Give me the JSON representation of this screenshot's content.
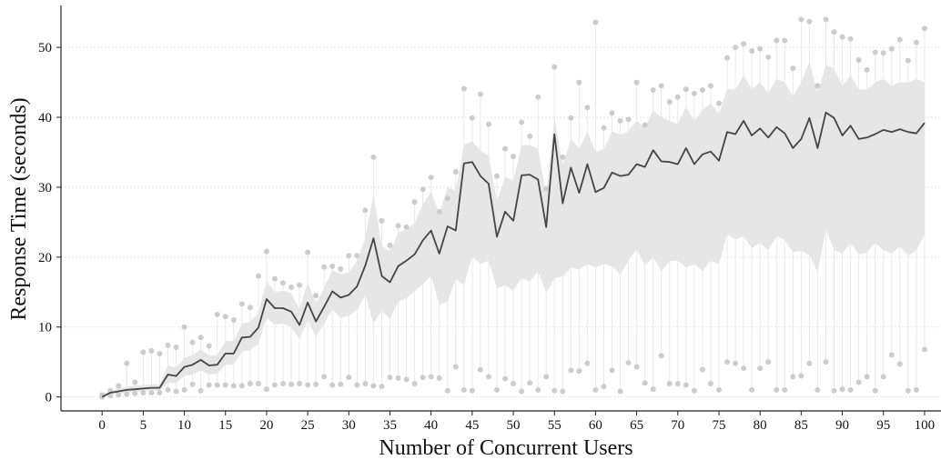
{
  "chart_data": {
    "type": "line",
    "title": "",
    "xlabel": "Number of Concurrent Users",
    "ylabel": "Response Time (seconds)",
    "xlim": [
      -5,
      102
    ],
    "ylim": [
      -2,
      56
    ],
    "xticks": [
      0,
      5,
      10,
      15,
      20,
      25,
      30,
      35,
      40,
      45,
      50,
      55,
      60,
      65,
      70,
      75,
      80,
      85,
      90,
      95,
      100
    ],
    "yticks": [
      0,
      10,
      20,
      30,
      40,
      50
    ],
    "grid": "horizontal-dotted",
    "colors": {
      "line": "#444444",
      "band": "#e6e6e6",
      "points": "#cccccc",
      "whiskers": "#e8e8e8",
      "grid": "#dddddd",
      "axis": "#222222"
    },
    "x": [
      0,
      1,
      2,
      3,
      4,
      5,
      6,
      7,
      8,
      9,
      10,
      11,
      12,
      13,
      14,
      15,
      16,
      17,
      18,
      19,
      20,
      21,
      22,
      23,
      24,
      25,
      26,
      27,
      28,
      29,
      30,
      31,
      32,
      33,
      34,
      35,
      36,
      37,
      38,
      39,
      40,
      41,
      42,
      43,
      44,
      45,
      46,
      47,
      48,
      49,
      50,
      51,
      52,
      53,
      54,
      55,
      56,
      57,
      58,
      59,
      60,
      61,
      62,
      63,
      64,
      65,
      66,
      67,
      68,
      69,
      70,
      71,
      72,
      73,
      74,
      75,
      76,
      77,
      78,
      79,
      80,
      81,
      82,
      83,
      84,
      85,
      86,
      87,
      88,
      89,
      90,
      91,
      92,
      93,
      94,
      95,
      96,
      97,
      98,
      99,
      100
    ],
    "series": [
      {
        "role": "mean",
        "values": [
          0,
          0.6,
          0.8,
          1.0,
          1.1,
          1.2,
          1.3,
          1.3,
          3.2,
          3.0,
          4.3,
          4.6,
          5.3,
          4.5,
          4.6,
          6.2,
          6.2,
          8.5,
          8.6,
          9.9,
          14.0,
          12.7,
          12.7,
          12.2,
          10.3,
          13.5,
          10.8,
          12.9,
          15.1,
          14.2,
          14.6,
          15.8,
          18.8,
          22.7,
          17.3,
          16.4,
          18.7,
          19.5,
          20.4,
          22.4,
          23.8,
          20.5,
          24.4,
          23.8,
          33.4,
          33.6,
          31.6,
          30.5,
          22.9,
          26.5,
          25.2,
          31.7,
          31.8,
          31.1,
          24.3,
          37.6,
          27.7,
          32.8,
          29.2,
          33.3,
          29.3,
          29.9,
          32.1,
          31.6,
          31.8,
          33.3,
          32.9,
          35.3,
          33.7,
          33.6,
          33.3,
          35.6,
          33.3,
          34.7,
          35.1,
          33.8,
          37.9,
          37.6,
          39.5,
          37.4,
          38.4,
          37.1,
          38.6,
          37.7,
          35.6,
          36.9,
          39.9,
          35.6,
          40.7,
          39.9,
          37.4,
          38.8,
          36.9,
          37.1,
          37.6,
          38.2,
          37.9,
          38.3,
          37.9,
          37.7,
          39.2
        ]
      },
      {
        "role": "band-upper",
        "values": [
          0.3,
          0.9,
          1.2,
          1.5,
          1.6,
          1.7,
          1.8,
          1.8,
          4.5,
          4.2,
          5.6,
          6.0,
          6.8,
          5.9,
          6.0,
          8.0,
          8.0,
          10.5,
          10.7,
          12.1,
          16.6,
          15.0,
          15.2,
          14.8,
          12.6,
          16.4,
          13.3,
          15.6,
          18.2,
          17.5,
          17.9,
          19.4,
          22.8,
          29.0,
          21.6,
          20.8,
          23.5,
          24.0,
          24.9,
          27.6,
          29.4,
          26.2,
          30.0,
          29.5,
          36.0,
          36.6,
          35.2,
          34.5,
          28.0,
          31.5,
          31.0,
          36.0,
          36.0,
          35.5,
          29.0,
          40.0,
          33.0,
          37.0,
          35.5,
          38.0,
          35.0,
          35.5,
          38.0,
          37.5,
          38.0,
          39.5,
          38.5,
          41.0,
          40.0,
          39.5,
          39.0,
          41.5,
          39.5,
          41.0,
          42.0,
          40.5,
          44.0,
          44.0,
          46.0,
          44.0,
          45.0,
          43.5,
          45.5,
          45.0,
          43.0,
          45.0,
          48.0,
          43.5,
          47.5,
          47.0,
          44.5,
          46.0,
          44.0,
          44.0,
          45.0,
          45.5,
          44.5,
          45.0,
          45.0,
          45.5,
          45.0
        ]
      },
      {
        "role": "band-lower",
        "values": [
          0,
          0.3,
          0.5,
          0.6,
          0.7,
          0.8,
          0.9,
          0.9,
          2.0,
          2.0,
          3.0,
          3.2,
          3.8,
          3.2,
          3.3,
          4.6,
          4.6,
          6.5,
          6.7,
          7.6,
          11.3,
          10.3,
          10.5,
          10.0,
          8.3,
          11.0,
          8.6,
          10.5,
          12.5,
          11.3,
          11.6,
          12.4,
          14.6,
          10.5,
          12.3,
          11.2,
          13.6,
          14.1,
          15.1,
          16.1,
          17.3,
          13.2,
          13.6,
          16.9,
          16.0,
          20.1,
          19.0,
          19.5,
          15.5,
          16.0,
          15.2,
          17.0,
          16.5,
          18.0,
          14.8,
          17.0,
          17.2,
          18.5,
          18.2,
          19.0,
          18.5,
          19.0,
          18.7,
          17.5,
          19.5,
          21.1,
          18.8,
          20.0,
          18.0,
          19.4,
          19.5,
          18.5,
          19.0,
          18.0,
          19.5,
          19.0,
          23.3,
          22.5,
          23.0,
          21.3,
          22.0,
          21.0,
          23.0,
          22.5,
          20.7,
          20.9,
          20.3,
          17.8,
          24.0,
          21.0,
          20.5,
          22.0,
          20.4,
          20.7,
          22.0,
          21.0,
          20.5,
          21.5,
          20.2,
          21.0,
          23.2
        ]
      },
      {
        "role": "max-points",
        "values": [
          0.3,
          0.9,
          1.6,
          4.8,
          2.1,
          6.4,
          6.6,
          6.2,
          7.4,
          7.1,
          10.0,
          7.8,
          8.5,
          7.3,
          11.8,
          11.5,
          11.0,
          13.3,
          12.8,
          17.3,
          20.8,
          16.9,
          16.3,
          15.7,
          16.0,
          20.7,
          14.5,
          18.6,
          18.7,
          18.3,
          20.2,
          20.2,
          26.7,
          34.3,
          25.2,
          21.7,
          24.5,
          24.3,
          27.9,
          29.7,
          31.4,
          26.5,
          28.4,
          32.2,
          44.1,
          39.9,
          43.3,
          39.0,
          31.6,
          35.5,
          34.4,
          39.3,
          37.3,
          42.9,
          29.8,
          47.2,
          34.3,
          39.9,
          45.0,
          41.4,
          53.6,
          38.5,
          40.6,
          39.5,
          39.7,
          45.0,
          38.9,
          43.9,
          44.5,
          42.2,
          42.9,
          44.0,
          43.4,
          43.9,
          44.5,
          42.0,
          48.5,
          50.0,
          50.5,
          49.5,
          49.8,
          48.6,
          51.0,
          51.0,
          47.0,
          54.0,
          53.7,
          44.5,
          54.0,
          52.2,
          51.5,
          51.2,
          48.2,
          46.8,
          49.3,
          49.2,
          49.8,
          51.1,
          48.1,
          50.7,
          52.7
        ]
      },
      {
        "role": "min-points",
        "values": [
          0,
          0.2,
          0.3,
          0.4,
          0.5,
          0.6,
          0.6,
          0.6,
          1.0,
          0.8,
          1.0,
          1.8,
          0.9,
          1.7,
          1.7,
          1.7,
          1.6,
          1.6,
          1.9,
          1.9,
          1.1,
          1.7,
          1.9,
          1.8,
          1.9,
          1.7,
          1.8,
          2.9,
          1.7,
          1.8,
          2.8,
          1.7,
          1.9,
          1.6,
          1.5,
          2.8,
          2.7,
          2.5,
          1.9,
          2.8,
          2.9,
          2.7,
          0.9,
          4.3,
          1.0,
          0.9,
          3.9,
          2.9,
          1.0,
          2.6,
          1.9,
          0.8,
          2.0,
          1.0,
          2.9,
          0.9,
          0.8,
          3.8,
          3.7,
          4.8,
          1.0,
          1.5,
          3.8,
          0.8,
          4.9,
          4.3,
          2.0,
          1.1,
          5.9,
          1.9,
          1.9,
          1.7,
          0.9,
          3.9,
          1.9,
          1.0,
          5.0,
          4.8,
          4.1,
          1.0,
          4.1,
          5.0,
          1.0,
          1.0,
          2.9,
          3.0,
          4.8,
          1.0,
          5.0,
          0.9,
          1.1,
          1.0,
          2.1,
          2.9,
          0.9,
          2.9,
          6.0,
          4.7,
          0.9,
          1.0,
          6.8
        ]
      }
    ]
  }
}
